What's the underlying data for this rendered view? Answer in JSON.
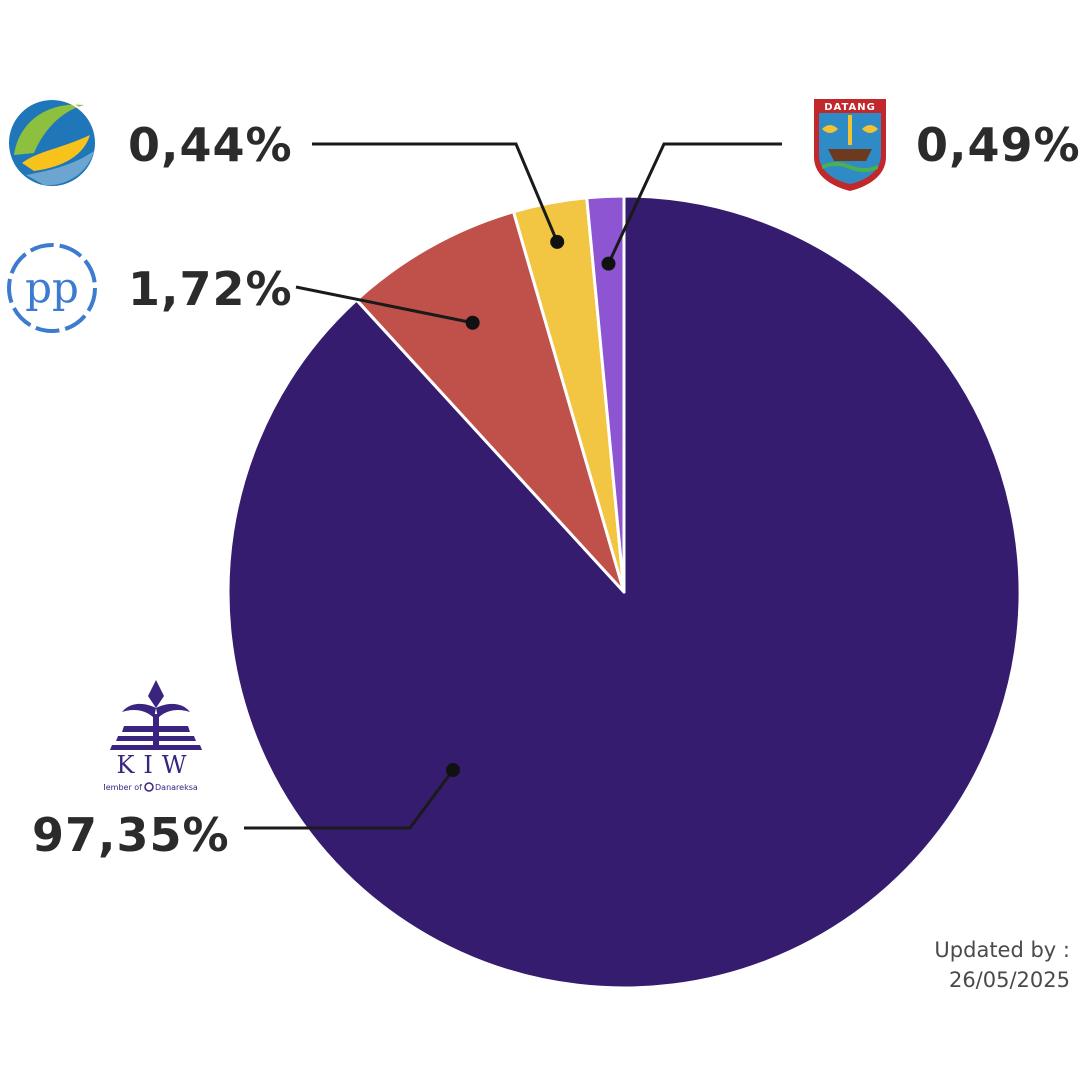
{
  "chart_data": {
    "type": "pie",
    "title": "",
    "start_angle_deg": 0,
    "direction": "clockwise",
    "slices": [
      {
        "label": "97,35%",
        "value": 97.35,
        "color": "#351c6e",
        "logo": "kiw-logo"
      },
      {
        "label": "1,72%",
        "value": 1.72,
        "color": "#c0514a",
        "logo": "pp-logo"
      },
      {
        "label": "0,44%",
        "value": 0.44,
        "color": "#f2c643",
        "logo": "leaf-wave-logo"
      },
      {
        "label": "0,49%",
        "value": 0.49,
        "color": "#8e55d2",
        "logo": "datang-emblem-logo"
      }
    ],
    "leader_color": "#1a1a1a"
  },
  "logos": {
    "kiw": {
      "name": "KIW",
      "tagline": "Member of",
      "partner": "Danareksa",
      "color": "#3b2480"
    },
    "pp": {
      "text": "pp",
      "color": "#3d7bd0"
    },
    "datang": {
      "text": "DATANG",
      "color": "#c0282c"
    },
    "leaf": {
      "colors": [
        "#8dc03f",
        "#f6c21b",
        "#1f76b8"
      ]
    }
  },
  "footer": {
    "updated_line1": "Updated by :",
    "updated_line2": "26/05/2025"
  }
}
